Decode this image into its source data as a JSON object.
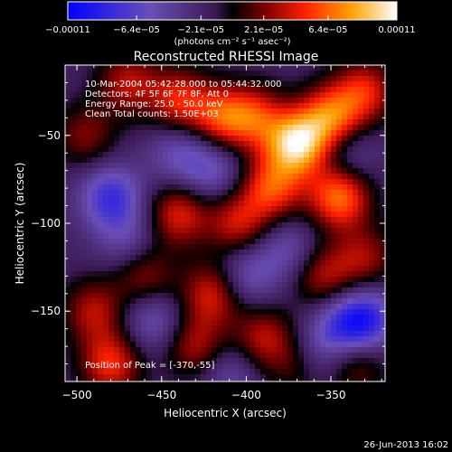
{
  "chart_data": {
    "type": "heatmap",
    "title": "Reconstructed RHESSI Image",
    "xlabel": "Heliocentric X (arcsec)",
    "ylabel": "Heliocentric Y (arcsec)",
    "xlim": [
      -507,
      -318
    ],
    "ylim": [
      -190,
      -10
    ],
    "xticks": [
      -500,
      -450,
      -400,
      -350
    ],
    "yticks": [
      -50,
      -100,
      -150
    ],
    "xtick_labels": [
      "−500",
      "−450",
      "−400",
      "−350"
    ],
    "ytick_labels": [
      "−50",
      "−100",
      "−150"
    ],
    "colorbar": {
      "range": [
        -0.00011,
        0.00011
      ],
      "tick_values": [
        -0.00011,
        -6.4e-05,
        -2.1e-05,
        2.1e-05,
        6.4e-05,
        0.00011
      ],
      "tick_labels": [
        "−0.00011",
        "−6.4e−05",
        "−2.1e−05",
        "2.1e−05",
        "6.4e−05",
        "0.00011"
      ],
      "units_label": "(photons cm⁻² s⁻¹ asec⁻²)"
    },
    "annotations": [
      "10-Mar-2004 05:42:28.000 to 05:44:32.000",
      "Detectors: 4F 5F 6F 7F 8F, Att 0",
      "Energy Range: 25.0 - 50.0 keV",
      "Clean    Total counts: 1.50E+03"
    ],
    "peak_label": "Position of Peak = [-370,-55]",
    "peak": [
      -370,
      -55
    ],
    "sources": [
      {
        "x": -370,
        "y": -55,
        "v": 0.00011
      },
      {
        "x": -350,
        "y": -40,
        "v": 8e-05
      },
      {
        "x": -345,
        "y": -85,
        "v": 8.5e-05
      },
      {
        "x": -385,
        "y": -80,
        "v": 7e-05
      },
      {
        "x": -395,
        "y": -40,
        "v": 6e-05
      },
      {
        "x": -415,
        "y": -40,
        "v": 6.5e-05
      },
      {
        "x": -330,
        "y": -25,
        "v": 6e-05
      },
      {
        "x": -440,
        "y": -30,
        "v": 6e-05
      },
      {
        "x": -470,
        "y": -20,
        "v": 5e-05
      },
      {
        "x": -495,
        "y": -50,
        "v": 4e-05
      },
      {
        "x": -490,
        "y": -150,
        "v": 5e-05
      },
      {
        "x": -480,
        "y": -180,
        "v": 6.5e-05
      },
      {
        "x": -440,
        "y": -95,
        "v": 6e-05
      },
      {
        "x": -405,
        "y": -100,
        "v": 5.5e-05
      },
      {
        "x": -460,
        "y": -130,
        "v": 4.5e-05
      },
      {
        "x": -420,
        "y": -140,
        "v": 6e-05
      },
      {
        "x": -430,
        "y": -170,
        "v": 5e-05
      },
      {
        "x": -390,
        "y": -165,
        "v": 5e-05
      },
      {
        "x": -355,
        "y": -130,
        "v": 5e-05
      },
      {
        "x": -330,
        "y": -120,
        "v": 4.5e-05
      },
      {
        "x": -335,
        "y": -180,
        "v": 4e-05
      },
      {
        "x": -370,
        "y": -180,
        "v": 3.5e-05
      },
      {
        "x": -480,
        "y": -85,
        "v": -6e-05
      },
      {
        "x": -420,
        "y": -70,
        "v": -4e-05
      },
      {
        "x": -470,
        "y": -110,
        "v": -3e-05
      },
      {
        "x": -440,
        "y": -60,
        "v": -3.5e-05
      },
      {
        "x": -455,
        "y": -155,
        "v": -4e-05
      },
      {
        "x": -400,
        "y": -130,
        "v": -4e-05
      },
      {
        "x": -375,
        "y": -115,
        "v": -3.5e-05
      },
      {
        "x": -330,
        "y": -155,
        "v": -7e-05
      },
      {
        "x": -345,
        "y": -160,
        "v": -4e-05
      },
      {
        "x": -340,
        "y": -60,
        "v": -3e-05
      },
      {
        "x": -360,
        "y": -175,
        "v": -3e-05
      },
      {
        "x": -410,
        "y": -185,
        "v": -3e-05
      }
    ]
  },
  "timestamp": "26-Jun-2013 16:02"
}
